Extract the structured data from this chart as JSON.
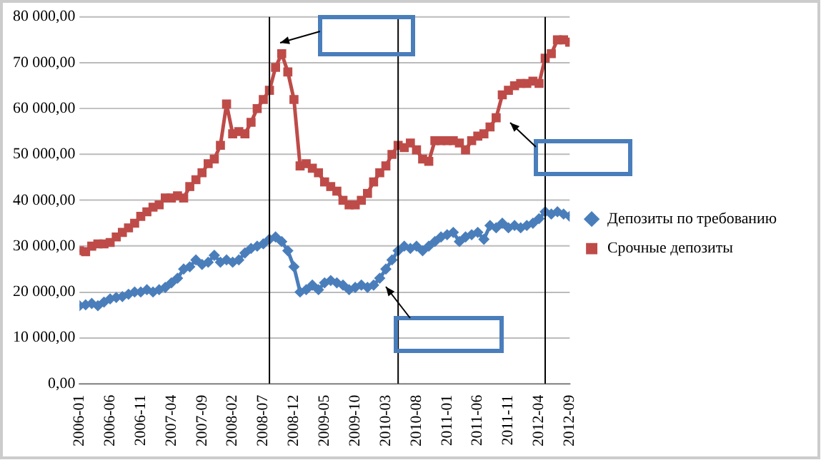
{
  "chart_data": {
    "type": "line",
    "x": [
      "2006-01",
      "2006-02",
      "2006-03",
      "2006-04",
      "2006-05",
      "2006-06",
      "2006-07",
      "2006-08",
      "2006-09",
      "2006-10",
      "2006-11",
      "2006-12",
      "2007-01",
      "2007-02",
      "2007-03",
      "2007-04",
      "2007-05",
      "2007-06",
      "2007-07",
      "2007-08",
      "2007-09",
      "2007-10",
      "2007-11",
      "2007-12",
      "2008-01",
      "2008-02",
      "2008-03",
      "2008-04",
      "2008-05",
      "2008-06",
      "2008-07",
      "2008-08",
      "2008-09",
      "2008-10",
      "2008-11",
      "2008-12",
      "2009-01",
      "2009-02",
      "2009-03",
      "2009-04",
      "2009-05",
      "2009-06",
      "2009-07",
      "2009-08",
      "2009-09",
      "2009-10",
      "2009-11",
      "2009-12",
      "2010-01",
      "2010-02",
      "2010-03",
      "2010-04",
      "2010-05",
      "2010-06",
      "2010-07",
      "2010-08",
      "2010-09",
      "2010-10",
      "2010-11",
      "2010-12",
      "2011-01",
      "2011-02",
      "2011-03",
      "2011-04",
      "2011-05",
      "2011-06",
      "2011-07",
      "2011-08",
      "2011-09",
      "2011-10",
      "2011-11",
      "2011-12",
      "2012-01",
      "2012-02",
      "2012-03",
      "2012-04",
      "2012-05",
      "2012-06",
      "2012-07",
      "2012-08",
      "2012-09"
    ],
    "series": [
      {
        "name": "Депозиты по требованию",
        "color": "#4a7ebb",
        "marker": "diamond",
        "values": [
          17000,
          17200,
          17500,
          17000,
          17800,
          18500,
          18800,
          19000,
          19500,
          20000,
          20000,
          20500,
          20000,
          20500,
          21000,
          22000,
          23000,
          25000,
          25500,
          27000,
          26000,
          26500,
          28000,
          26500,
          27000,
          26500,
          27000,
          28500,
          29500,
          30000,
          30500,
          31500,
          32000,
          31000,
          29000,
          25500,
          20000,
          20500,
          21500,
          20500,
          22000,
          22500,
          22000,
          21500,
          20500,
          21000,
          21500,
          21000,
          21500,
          23000,
          25000,
          27000,
          29000,
          30000,
          29500,
          30000,
          29000,
          30000,
          31000,
          32000,
          32500,
          33000,
          31000,
          32000,
          32500,
          33000,
          31500,
          34500,
          34000,
          35000,
          34000,
          34500,
          34000,
          34500,
          35000,
          36000,
          37500,
          37000,
          37500,
          37000,
          36500
        ]
      },
      {
        "name": "Срочные депозиты",
        "color": "#be4b48",
        "marker": "square",
        "values": [
          29000,
          28800,
          30000,
          30500,
          30500,
          30800,
          32000,
          33000,
          34000,
          35000,
          36500,
          37500,
          38500,
          39000,
          40500,
          40500,
          41000,
          40500,
          43000,
          44500,
          46000,
          48000,
          49000,
          52000,
          61000,
          54500,
          55000,
          54500,
          57000,
          60000,
          62000,
          64000,
          69000,
          72000,
          68000,
          62000,
          47500,
          48000,
          47000,
          46000,
          44000,
          43000,
          42000,
          40000,
          39000,
          39000,
          40000,
          41500,
          44000,
          46000,
          47500,
          50000,
          52000,
          51500,
          52500,
          51000,
          49000,
          48500,
          53000,
          53000,
          53000,
          53000,
          52500,
          51000,
          53000,
          54000,
          54500,
          56000,
          58000,
          63000,
          64000,
          65000,
          65500,
          65500,
          66000,
          65500,
          71000,
          72000,
          75000,
          75000,
          74500
        ]
      }
    ],
    "xlim": [
      "2006-01",
      "2012-09"
    ],
    "xticks": [
      "2006-01",
      "2006-06",
      "2006-11",
      "2007-04",
      "2007-09",
      "2008-02",
      "2008-07",
      "2008-12",
      "2009-05",
      "2009-10",
      "2010-03",
      "2010-08",
      "2011-01",
      "2011-06",
      "2011-11",
      "2012-04",
      "2012-09"
    ],
    "ylim": [
      0,
      80000
    ],
    "yticks": [
      {
        "value": 0,
        "label": "0,00"
      },
      {
        "value": 10000,
        "label": "10 000,00"
      },
      {
        "value": 20000,
        "label": "20 000,00"
      },
      {
        "value": 30000,
        "label": "30 000,00"
      },
      {
        "value": 40000,
        "label": "40 000,00"
      },
      {
        "value": 50000,
        "label": "50 000,00"
      },
      {
        "value": 60000,
        "label": "60 000,00"
      },
      {
        "value": 70000,
        "label": "70 000,00"
      },
      {
        "value": 80000,
        "label": "80 000,00"
      }
    ],
    "ref_lines": [
      {
        "axis": "x",
        "value": "2008-08",
        "color": "#000000"
      },
      {
        "axis": "x",
        "value": "2010-05",
        "color": "#000000"
      },
      {
        "axis": "x",
        "value": "2012-05",
        "color": "#000000"
      }
    ],
    "grid": "y",
    "legend": "right",
    "line_style": "solid"
  }
}
